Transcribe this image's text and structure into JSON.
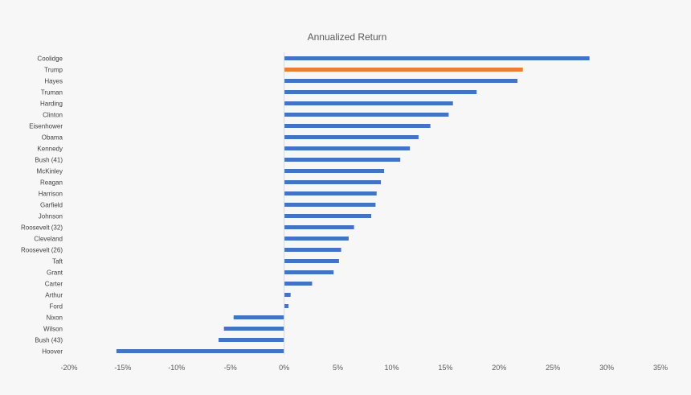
{
  "chart_data": {
    "type": "bar",
    "orientation": "horizontal",
    "title": "Annualized Return",
    "xlabel": "",
    "ylabel": "",
    "xlim": [
      -0.2,
      0.35
    ],
    "x_ticks": [
      -0.2,
      -0.15,
      -0.1,
      -0.05,
      0,
      0.05,
      0.1,
      0.15,
      0.2,
      0.25,
      0.3,
      0.35
    ],
    "x_tick_labels": [
      "-20%",
      "-15%",
      "-10%",
      "-5%",
      "0%",
      "5%",
      "10%",
      "15%",
      "20%",
      "25%",
      "30%",
      "35%"
    ],
    "grid": false,
    "legend": "none",
    "colors": {
      "default": "#4472c4",
      "highlight": "#ed7d31"
    },
    "categories": [
      "Coolidge",
      "Trump",
      "Hayes",
      "Truman",
      "Harding",
      "Clinton",
      "Eisenhower",
      "Obama",
      "Kennedy",
      "Bush (41)",
      "McKinley",
      "Reagan",
      "Harrison",
      "Garfield",
      "Johnson",
      "Roosevelt (32)",
      "Cleveland",
      "Roosevelt (26)",
      "Taft",
      "Grant",
      "Carter",
      "Arthur",
      "Ford",
      "Nixon",
      "Wilson",
      "Bush (43)",
      "Hoover"
    ],
    "values": [
      0.284,
      0.222,
      0.217,
      0.179,
      0.157,
      0.153,
      0.136,
      0.125,
      0.117,
      0.108,
      0.093,
      0.09,
      0.086,
      0.085,
      0.081,
      0.065,
      0.06,
      0.053,
      0.051,
      0.046,
      0.026,
      0.006,
      0.004,
      -0.047,
      -0.056,
      -0.061,
      -0.156
    ],
    "highlight_category": "Trump"
  }
}
